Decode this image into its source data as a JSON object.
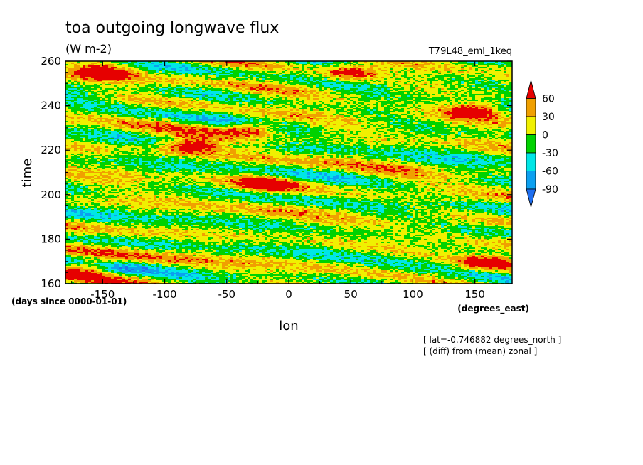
{
  "chart_data": {
    "type": "heatmap",
    "title": "toa outgoing longwave flux",
    "subtitle": "(W m-2)",
    "experiment": "T79L48_eml_1keq",
    "xlabel": "lon",
    "ylabel": "time",
    "x_units": "(degrees_east)",
    "y_units": "(days since 0000-01-01)",
    "xlim": [
      -180,
      180
    ],
    "ylim": [
      160,
      260
    ],
    "x_ticks": [
      -150,
      -100,
      -50,
      0,
      50,
      100,
      150
    ],
    "y_ticks": [
      160,
      180,
      200,
      220,
      240,
      260
    ],
    "x_tick_labels": [
      "-150",
      "-100",
      "-50",
      "0",
      "50",
      "100",
      "150"
    ],
    "y_tick_labels": [
      "160",
      "180",
      "200",
      "220",
      "240",
      "260"
    ],
    "annotations": [
      "[ lat=-0.746882 degrees_north ]",
      "[ (diff) from (mean) zonal ]"
    ],
    "colorbar": {
      "labels": [
        "60",
        "30",
        "0",
        "-30",
        "-60",
        "-90"
      ],
      "levels": [
        -90,
        -60,
        -30,
        0,
        30,
        60
      ],
      "colors": [
        "#1e6ef0",
        "#0ca0f0",
        "#00e6e6",
        "#00d200",
        "#f0f000",
        "#f0a000",
        "#e60000"
      ]
    },
    "notable_positive_anomalies": [
      {
        "lon": -80,
        "time": 222,
        "value": 60
      },
      {
        "lon": -20,
        "time": 205,
        "value": 60
      },
      {
        "lon": -30,
        "time": 230,
        "value": 60
      },
      {
        "lon": 150,
        "time": 238,
        "value": 60
      },
      {
        "lon": -150,
        "time": 255,
        "value": 60
      },
      {
        "lon": 50,
        "time": 255,
        "value": 60
      },
      {
        "lon": -165,
        "time": 168,
        "value": 60
      },
      {
        "lon": 160,
        "time": 170,
        "value": 60
      }
    ],
    "grid": false
  }
}
